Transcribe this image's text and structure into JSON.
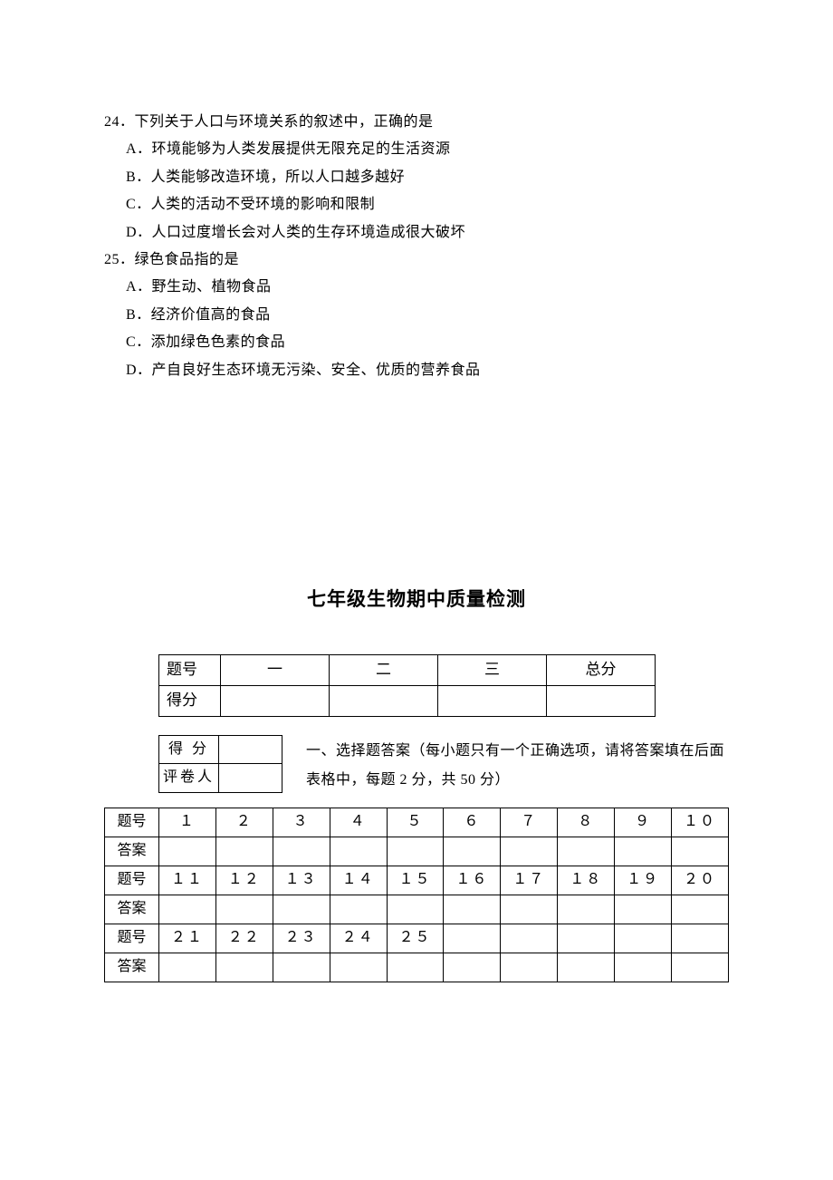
{
  "q24": {
    "stem": "24．下列关于人口与环境关系的叙述中，正确的是",
    "optA": "A．环境能够为人类发展提供无限充足的生活资源",
    "optB": "B．人类能够改造环境，所以人口越多越好",
    "optC": "C．人类的活动不受环境的影响和限制",
    "optD": "D．人口过度增长会对人类的生存环境造成很大破坏"
  },
  "q25": {
    "stem": "25．绿色食品指的是",
    "optA": "A．野生动、植物食品",
    "optB": "B．经济价值高的食品",
    "optC": "C．添加绿色色素的食品",
    "optD": "D．产自良好生态环境无污染、安全、优质的营养食品"
  },
  "title": "七年级生物期中质量检测",
  "scoreTable": {
    "rowLabels": [
      "题号",
      "得分"
    ],
    "cols": [
      "一",
      "二",
      "三",
      "总分"
    ]
  },
  "graderTable": {
    "rows": [
      "得  分",
      "评卷人"
    ]
  },
  "section1": {
    "line1": "一、选择题答案（每小题只有一个正确选项，请将答案填在后面",
    "line2": "表格中，每题 2 分，共 50 分）"
  },
  "answerTable": {
    "labelQ": "题号",
    "labelA": "答案",
    "rows": [
      [
        "１",
        "２",
        "３",
        "４",
        "５",
        "６",
        "７",
        "８",
        "９",
        "１０"
      ],
      [
        "１１",
        "１２",
        "１３",
        "１４",
        "１５",
        "１６",
        "１７",
        "１８",
        "１９",
        "２０"
      ],
      [
        "２１",
        "２２",
        "２３",
        "２４",
        "２５",
        "",
        "",
        "",
        "",
        ""
      ]
    ]
  },
  "style": {
    "background": "#ffffff",
    "textColor": "#000000",
    "borderColor": "#000000",
    "bodyFontSize": 16,
    "titleFontSize": 21
  }
}
